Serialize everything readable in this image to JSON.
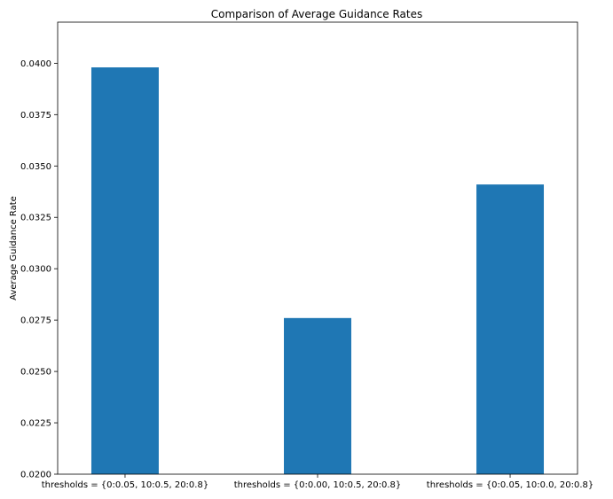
{
  "chart_data": {
    "type": "bar",
    "title": "Comparison of Average Guidance Rates",
    "xlabel": "",
    "ylabel": "Average Guidance Rate",
    "categories": [
      "thresholds = {0:0.05, 10:0.5, 20:0.8}",
      "thresholds = {0:0.00, 10:0.5, 20:0.8}",
      "thresholds = {0:0.05, 10:0.0, 20:0.8}"
    ],
    "values": [
      0.0398,
      0.0276,
      0.0341
    ],
    "ylim": [
      0.02,
      0.042
    ],
    "yticks": [
      0.02,
      0.0225,
      0.025,
      0.0275,
      0.03,
      0.0325,
      0.035,
      0.0375,
      0.04
    ],
    "ytick_labels": [
      "0.0200",
      "0.0225",
      "0.0250",
      "0.0275",
      "0.0300",
      "0.0325",
      "0.0350",
      "0.0375",
      "0.0400"
    ],
    "bar_color": "#1f77b4",
    "grid": false,
    "legend": "none"
  }
}
